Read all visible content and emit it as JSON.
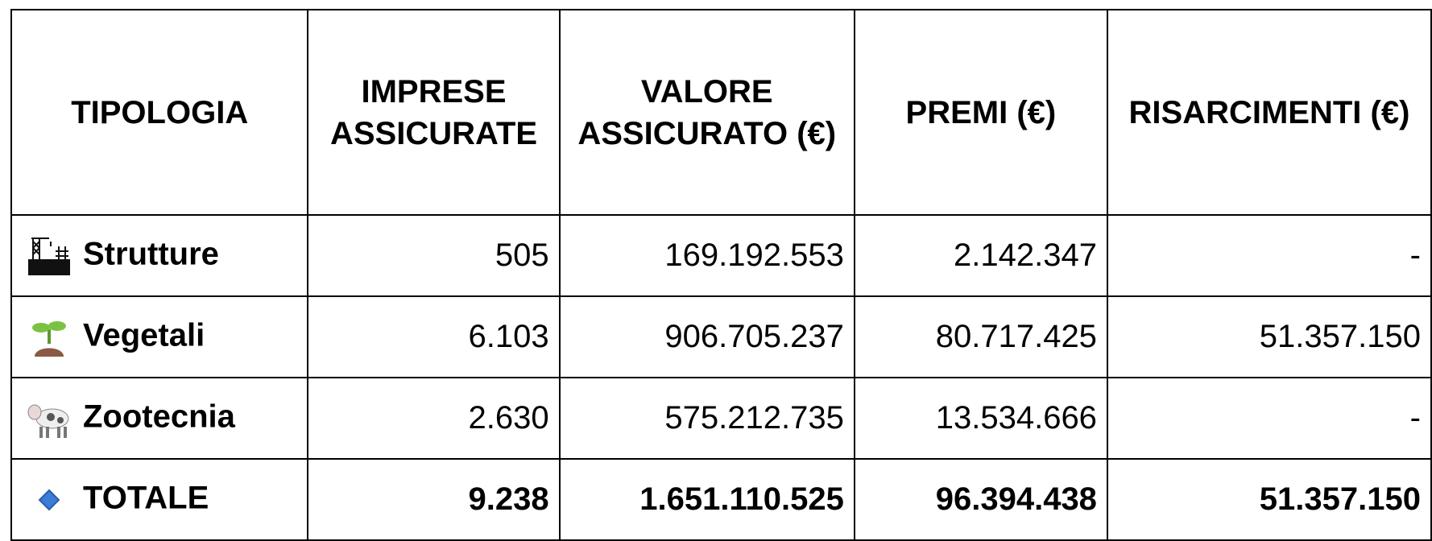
{
  "table": {
    "header": [
      "TIPOLOGIA",
      "IMPRESE ASSICURATE",
      "VALORE ASSICURATO (€)",
      "PREMI (€)",
      "RISARCIMENTI (€)"
    ],
    "rows": [
      [
        "Strutture",
        "505",
        "169.192.553",
        "2.142.347",
        "-"
      ],
      [
        "Vegetali",
        "6.103",
        "906.705.237",
        "80.717.425",
        "51.357.150"
      ],
      [
        "Zootecnia",
        "2.630",
        "575.212.735",
        "13.534.666",
        "-"
      ],
      [
        "TOTALE",
        "9.238",
        "1.651.110.525",
        "96.394.438",
        "51.357.150"
      ]
    ]
  }
}
